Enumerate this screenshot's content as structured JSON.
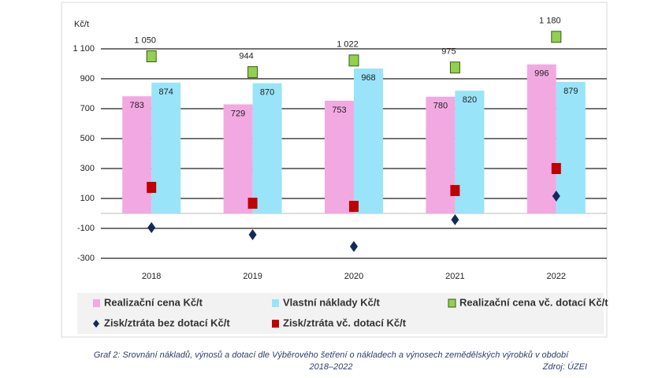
{
  "chart_data": {
    "type": "bar",
    "y_unit_label": "Kč/t",
    "categories": [
      "2018",
      "2019",
      "2020",
      "2021",
      "2022"
    ],
    "series": [
      {
        "name": "Realizační cena Kč/t",
        "kind": "bar",
        "color": "#f2a9e2",
        "values": [
          783,
          729,
          753,
          780,
          996
        ]
      },
      {
        "name": "Vlastní náklady Kč/t",
        "kind": "bar",
        "color": "#99e4f9",
        "values": [
          874,
          870,
          968,
          820,
          879
        ]
      },
      {
        "name": "Realizační cena vč. dotací Kč/t",
        "kind": "marker",
        "marker": "square",
        "color": "#92d050",
        "stroke": "#3a5a14",
        "values": [
          1050,
          944,
          1022,
          975,
          1180
        ],
        "value_labels": [
          "1 050",
          "944",
          "1 022",
          "975",
          "1 180"
        ]
      },
      {
        "name": "Zisk/ztráta bez dotací Kč/t",
        "kind": "marker",
        "marker": "diamond",
        "color": "#112a5a",
        "values": [
          -95,
          -142,
          -221,
          -42,
          116
        ]
      },
      {
        "name": "Zisk/ztráta vč. dotací Kč/t",
        "kind": "marker",
        "marker": "square",
        "color": "#c00000",
        "values": [
          174,
          68,
          47,
          153,
          300
        ]
      }
    ],
    "ylim": [
      -300,
      1300
    ],
    "yticks": [
      -300,
      -100,
      100,
      300,
      500,
      700,
      900,
      {
        "value": 1100,
        "label": "1 100"
      }
    ],
    "grid": true
  },
  "caption": {
    "line1": "Graf 2: Srovnání nákladů, výnosů a dotací dle Výběrového šetření o nákladech a výnosech zemědělských výrobků v období",
    "line2": "2018–2022",
    "source": "Zdroj: ÚZEI"
  }
}
